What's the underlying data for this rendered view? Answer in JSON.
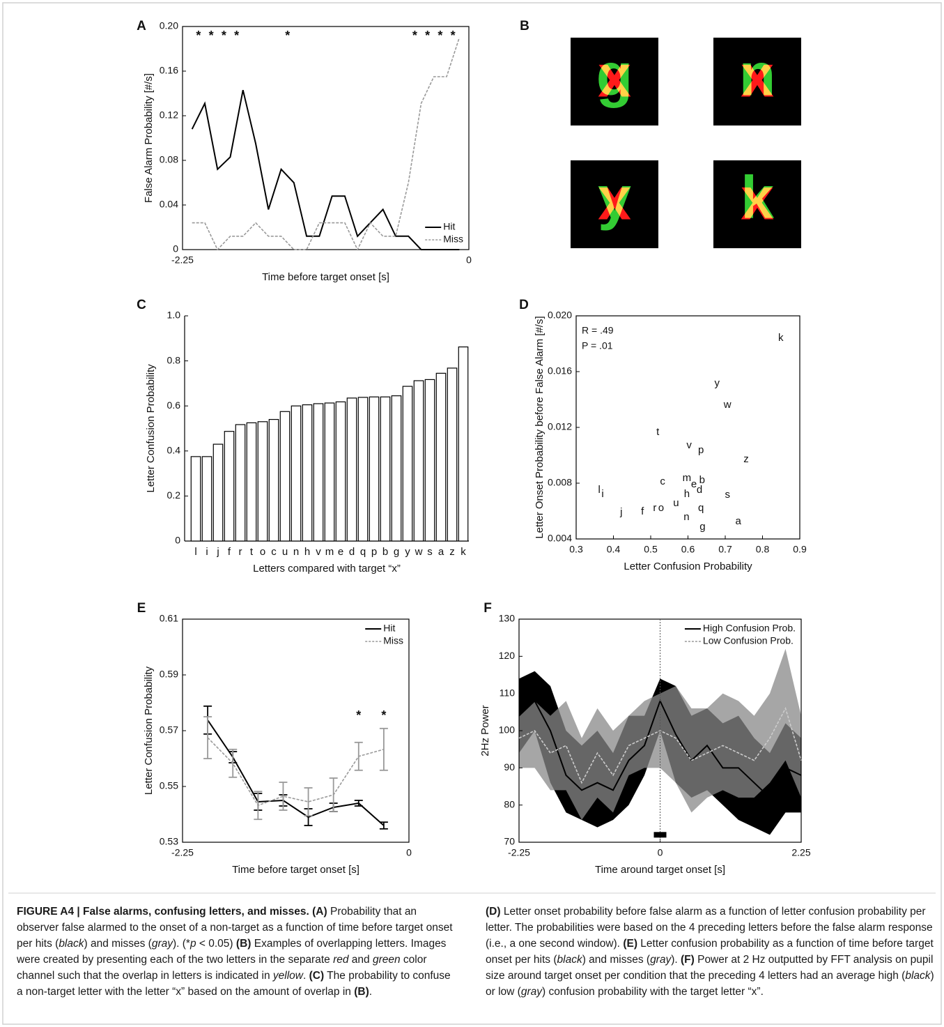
{
  "chart_data": [
    {
      "type": "line",
      "label": "A",
      "x": [
        -2.175,
        -2.075,
        -1.975,
        -1.875,
        -1.775,
        -1.675,
        -1.575,
        -1.475,
        -1.375,
        -1.275,
        -1.175,
        -1.075,
        -0.975,
        -0.875,
        -0.775,
        -0.675,
        -0.575,
        -0.475,
        -0.375,
        -0.275,
        -0.175,
        -0.075
      ],
      "series": [
        {
          "name": "Hit",
          "color": "#000000",
          "dash": false,
          "values": [
            0.108,
            0.131,
            0.072,
            0.083,
            0.143,
            0.095,
            0.036,
            0.072,
            0.06,
            0.012,
            0.012,
            0.048,
            0.048,
            0.012,
            0.024,
            0.036,
            0.012,
            0.012,
            0,
            0,
            0,
            0
          ]
        },
        {
          "name": "Miss",
          "color": "#999999",
          "dash": true,
          "values": [
            0.024,
            0.024,
            0,
            0.012,
            0.012,
            0.024,
            0.012,
            0.012,
            0,
            0,
            0.024,
            0.024,
            0.024,
            0,
            0.024,
            0.012,
            0.012,
            0.06,
            0.131,
            0.155,
            0.155,
            0.19
          ]
        }
      ],
      "xlim": [
        -2.25,
        0
      ],
      "xticks": [
        -2.25,
        0
      ],
      "ylim": [
        0,
        0.2
      ],
      "yticks": [
        0,
        0.04,
        0.08,
        0.12,
        0.16,
        {
          "value": 0.2,
          "label": "0.20"
        }
      ],
      "xlabel": "Time before target onset [s]",
      "ylabel": "False Alarm Probability [#/s]",
      "legend": "lower right",
      "annotations": [
        {
          "text": "*",
          "x": -2.125,
          "y": 0.191
        },
        {
          "text": "*",
          "x": -2.025,
          "y": 0.191
        },
        {
          "text": "*",
          "x": -1.925,
          "y": 0.191
        },
        {
          "text": "*",
          "x": -1.825,
          "y": 0.191
        },
        {
          "text": "*",
          "x": -1.425,
          "y": 0.191
        },
        {
          "text": "*",
          "x": -0.425,
          "y": 0.191
        },
        {
          "text": "*",
          "x": -0.325,
          "y": 0.191
        },
        {
          "text": "*",
          "x": -0.225,
          "y": 0.191
        },
        {
          "text": "*",
          "x": -0.125,
          "y": 0.191
        }
      ]
    },
    {
      "type": "bar",
      "label": "C",
      "box": false,
      "color": "#ffffff",
      "edgecolor": "#000000",
      "categories": [
        "l",
        "i",
        "j",
        "f",
        "r",
        "t",
        "o",
        "c",
        "u",
        "n",
        "h",
        "v",
        "m",
        "e",
        "d",
        "q",
        "p",
        "b",
        "g",
        "y",
        "w",
        "s",
        "a",
        "z",
        "k"
      ],
      "values": [
        0.375,
        0.375,
        0.43,
        0.487,
        0.517,
        0.525,
        0.53,
        0.54,
        0.575,
        0.6,
        0.605,
        0.61,
        0.613,
        0.618,
        0.635,
        0.638,
        0.64,
        0.64,
        0.645,
        0.687,
        0.712,
        0.717,
        0.745,
        0.768,
        0.862
      ],
      "ylim": [
        0,
        1
      ],
      "yticks": [
        0,
        0.2,
        0.4,
        0.6,
        0.8,
        {
          "value": 1,
          "label": "1.0"
        }
      ],
      "xlabel": "Letters compared with target “x”",
      "ylabel": "Letter Confusion Probability"
    },
    {
      "type": "scatter",
      "label": "D",
      "labels": [
        "k",
        "y",
        "w",
        "t",
        "v",
        "p",
        "z",
        "c",
        "m",
        "e",
        "b",
        "d",
        "h",
        "s",
        "l",
        "i",
        "u",
        "j",
        "f",
        "r",
        "o",
        "q",
        "n",
        "a",
        "g"
      ],
      "x": [
        0.849,
        0.678,
        0.706,
        0.519,
        0.603,
        0.635,
        0.756,
        0.532,
        0.597,
        0.616,
        0.638,
        0.631,
        0.597,
        0.706,
        0.362,
        0.371,
        0.568,
        0.421,
        0.478,
        0.511,
        0.528,
        0.635,
        0.596,
        0.735,
        0.639
      ],
      "values": [
        0.0184,
        0.01515,
        0.0136,
        0.01165,
        0.0107,
        0.01035,
        0.0097,
        0.0081,
        0.00835,
        0.0079,
        0.0082,
        0.0075,
        0.0072,
        0.00715,
        0.0075,
        0.0072,
        0.00655,
        0.0059,
        0.00595,
        0.0062,
        0.0062,
        0.0062,
        0.00555,
        0.00525,
        0.00485
      ],
      "xlim": [
        0.3,
        0.9
      ],
      "xticks": [
        0.3,
        0.4,
        0.5,
        0.6,
        0.7,
        0.8,
        0.9
      ],
      "ylim": [
        0.004,
        0.02
      ],
      "yticks": [
        0.004,
        0.008,
        0.012,
        0.016,
        {
          "value": 0.02,
          "label": "0.020"
        }
      ],
      "xlabel": "Letter Confusion Probability",
      "ylabel": "Letter Onset Probability before False Alarm [#/s]",
      "annotations": [
        {
          "text": "R = .49",
          "x": 0.315,
          "y": 0.0189,
          "anchor": "start"
        },
        {
          "text": "P = .01",
          "x": 0.315,
          "y": 0.0178,
          "anchor": "start"
        }
      ]
    },
    {
      "type": "line",
      "label": "E",
      "x": [
        -2,
        -1.75,
        -1.5,
        -1.25,
        -1,
        -0.75,
        -0.5,
        -0.25
      ],
      "series": [
        {
          "name": "Hit",
          "color": "#000000",
          "dash": false,
          "values": [
            0.5738,
            0.5605,
            0.5445,
            0.545,
            0.539,
            0.5425,
            0.544,
            0.536
          ],
          "errors": [
            0.005,
            0.002,
            0.003,
            0.002,
            0.003,
            0.0015,
            0.001,
            0.0012
          ]
        },
        {
          "name": "Miss",
          "color": "#999999",
          "dash": true,
          "values": [
            0.5675,
            0.5583,
            0.5432,
            0.5465,
            0.5445,
            0.547,
            0.5608,
            0.5633
          ],
          "errors": [
            0.0075,
            0.005,
            0.005,
            0.005,
            0.005,
            0.006,
            0.005,
            0.0075
          ]
        }
      ],
      "xlim": [
        -2.25,
        0
      ],
      "xticks": [
        -2.25,
        0
      ],
      "ylim": [
        0.53,
        0.61
      ],
      "yticks": [
        0.53,
        0.55,
        0.57,
        0.59,
        0.61
      ],
      "xlabel": "Time before target onset [s]",
      "ylabel": "Letter Confusion Probability",
      "legend": "upper right",
      "annotations": [
        {
          "text": "*",
          "x": -0.5,
          "y": 0.5752
        },
        {
          "text": "*",
          "x": -0.25,
          "y": 0.5752
        }
      ]
    },
    {
      "type": "line",
      "label": "F",
      "x": [
        -2.25,
        -2,
        -1.75,
        -1.5,
        -1.25,
        -1,
        -0.75,
        -0.5,
        -0.25,
        0,
        0.25,
        0.5,
        0.75,
        1,
        1.25,
        1.5,
        1.75,
        2,
        2.25
      ],
      "series": [
        {
          "name": "High Confusion Prob.",
          "color": "#000000",
          "dash": false,
          "band_color": "#000000",
          "band_opacity": 1,
          "values": [
            104,
            108,
            100,
            88,
            84,
            86,
            84,
            92,
            96,
            108,
            99,
            92,
            96,
            90,
            90,
            86,
            82,
            90,
            88
          ],
          "upper": [
            114,
            116,
            112,
            100,
            96,
            100,
            94,
            104,
            104,
            114,
            112,
            104,
            106,
            102,
            104,
            98,
            94,
            102,
            98
          ],
          "lower": [
            94,
            100,
            86,
            78,
            76,
            74,
            76,
            80,
            88,
            100,
            86,
            82,
            84,
            80,
            76,
            74,
            72,
            78,
            78
          ]
        },
        {
          "name": "Low Confusion Prob.",
          "color": "#999999",
          "dash": true,
          "band_color": "#888888",
          "band_opacity": 0.75,
          "values": [
            98,
            100,
            94,
            96,
            86,
            94,
            88,
            96,
            98,
            100,
            98,
            92,
            94,
            96,
            94,
            92,
            98,
            106,
            92
          ],
          "upper": [
            104,
            108,
            104,
            108,
            98,
            106,
            100,
            104,
            108,
            110,
            112,
            106,
            106,
            110,
            108,
            104,
            110,
            122,
            104
          ],
          "lower": [
            90,
            90,
            84,
            84,
            76,
            82,
            78,
            88,
            90,
            90,
            86,
            78,
            82,
            84,
            82,
            82,
            86,
            92,
            82
          ]
        }
      ],
      "xlim": [
        -2.25,
        2.25
      ],
      "xticks": [
        -2.25,
        0,
        2.25
      ],
      "ylim": [
        70,
        130
      ],
      "yticks": [
        70,
        80,
        90,
        100,
        110,
        120,
        130
      ],
      "xlabel": "Time around target onset [s]",
      "ylabel": "2Hz Power",
      "legend": "upper right",
      "vlines": [
        0
      ],
      "sig_bars": [
        {
          "x": [
            -0.1,
            0.1
          ],
          "y": 72
        }
      ]
    }
  ],
  "panel_b": {
    "label": "B",
    "target": "x",
    "letters": [
      "g",
      "n",
      "y",
      "k"
    ]
  },
  "caption": {
    "left": [
      {
        "text": "FIGURE A4 | False alarms, confusing letters, and misses.",
        "style": "bold"
      },
      {
        "text": " ",
        "style": "normal"
      },
      {
        "text": "(A)",
        "style": "bold"
      },
      {
        "text": " Probability that an observer false alarmed to the onset of a non-target as a function of time before target onset per hits (",
        "style": "normal"
      },
      {
        "text": "black",
        "style": "italic"
      },
      {
        "text": ") and misses (",
        "style": "normal"
      },
      {
        "text": "gray",
        "style": "italic"
      },
      {
        "text": "). (*",
        "style": "normal"
      },
      {
        "text": "p",
        "style": "italic"
      },
      {
        "text": " < 0.05) ",
        "style": "normal"
      },
      {
        "text": "(B)",
        "style": "bold"
      },
      {
        "text": " Examples of overlapping letters. Images were created by presenting each of the two letters in the separate ",
        "style": "normal"
      },
      {
        "text": "red",
        "style": "italic"
      },
      {
        "text": " and ",
        "style": "normal"
      },
      {
        "text": "green",
        "style": "italic"
      },
      {
        "text": " color channel such that the overlap in letters is indicated in ",
        "style": "normal"
      },
      {
        "text": "yellow",
        "style": "italic"
      },
      {
        "text": ". ",
        "style": "normal"
      },
      {
        "text": "(C)",
        "style": "bold"
      },
      {
        "text": " The probability to confuse a non-target letter with the letter “x” based on the amount of overlap in ",
        "style": "normal"
      },
      {
        "text": "(B)",
        "style": "bold"
      },
      {
        "text": ".",
        "style": "normal"
      }
    ],
    "right": [
      {
        "text": "(D)",
        "style": "bold"
      },
      {
        "text": " Letter onset probability before false alarm as a function of letter confusion probability per letter. The probabilities were based on the 4 preceding letters before the false alarm response (i.e., a one second window). ",
        "style": "normal"
      },
      {
        "text": "(E)",
        "style": "bold"
      },
      {
        "text": " Letter confusion probability as a function of time before target onset per hits (",
        "style": "normal"
      },
      {
        "text": "black",
        "style": "italic"
      },
      {
        "text": ") and misses (",
        "style": "normal"
      },
      {
        "text": "gray",
        "style": "italic"
      },
      {
        "text": "). ",
        "style": "normal"
      },
      {
        "text": "(F)",
        "style": "bold"
      },
      {
        "text": " Power at 2 Hz outputted by FFT analysis on pupil size around target onset per condition that the preceding 4 letters had an average high (",
        "style": "normal"
      },
      {
        "text": "black",
        "style": "italic"
      },
      {
        "text": ") or low (",
        "style": "normal"
      },
      {
        "text": "gray",
        "style": "italic"
      },
      {
        "text": ") confusion probability with the target letter “x”.",
        "style": "normal"
      }
    ]
  }
}
